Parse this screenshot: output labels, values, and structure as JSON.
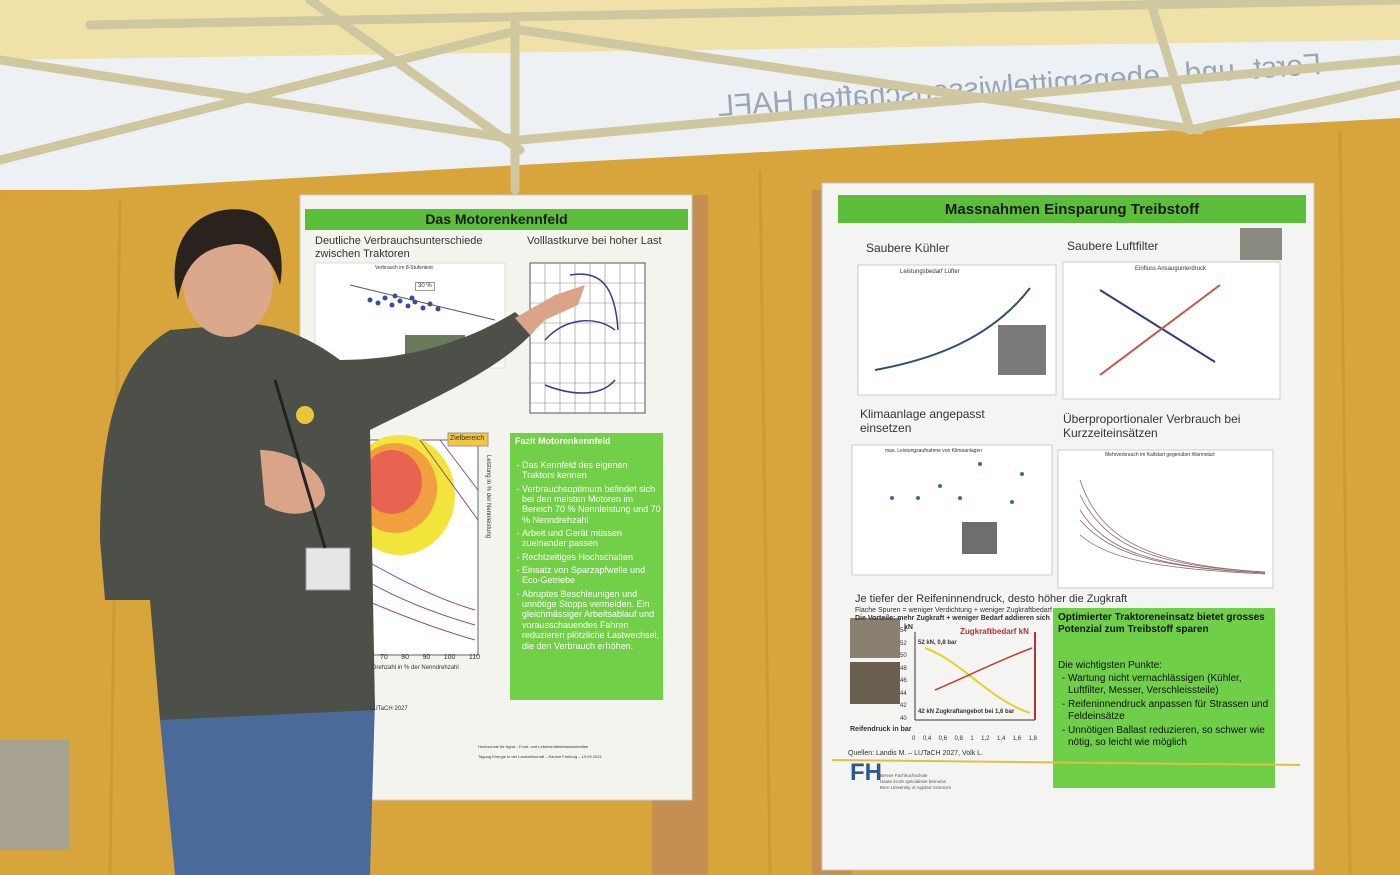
{
  "banner": {
    "text": "Forst- und Lebensmittelwissenschaften HAFL"
  },
  "poster_left": {
    "title": "Das Motorenkennfeld",
    "subtitle_left": "Deutliche Verbrauchsunterschiede zwischen Traktoren",
    "subtitle_right": "Volllastkurve bei hoher Last",
    "scatter_title": "Verbrauch im 8-Stufentest",
    "scatter_label": "30 %",
    "target_label": "Zielbereich",
    "y_axis_label": "Leistung in % der Nennleistung",
    "x_axis_label": "Drehzahl in % der Nenndrehzahl",
    "x_ticks": [
      "70",
      "80",
      "90",
      "100",
      "110"
    ],
    "fazit_title": "Fazit Motorenkennfeld",
    "fazit_points": [
      "Das Kennfeld des eigenen Traktors kennen",
      "Verbrauchsoptimum befindet sich bei den meisten Motoren im Bereich 70 % Nennleistung und 70 % Nenndrehzahl",
      "Arbeit und Gerät müssen zueinander passen",
      "Rechtzeitiges Hochschalten",
      "Einsatz von Sparzapfwelle und Eco-Getriebe",
      "Abruptes Beschleunigen und unnötige Stopps vermeiden. Ein gleichmässiger Arbeitsablauf und vorausschauendes Fahren reduzieren plötzliche Lastwechsel, die den Verbrauch erhöhen."
    ],
    "source": "LUTaCH 2027",
    "footer": "Hochschule für Agrar-, Forst- und Lebensmittelwissenschaften",
    "footer_event": "Tagung Energie in der Landwirtschaft – Kanton Freiburg – 19.09.2024"
  },
  "poster_right": {
    "title": "Massnahmen Einsparung Treibstoff",
    "section_cooler": "Saubere Kühler",
    "chart_cooler": "Leistungsbedarf Lüfter",
    "section_filter": "Saubere Luftfilter",
    "chart_filter": "Einfluss Ansaugunterdruck",
    "section_ac": "Klimaanlage angepasst einsetzen",
    "chart_ac": "max. Leistungsaufnahme von Klimaanlagen",
    "section_short": "Überproportionaler Verbrauch bei Kurzzeiteinsätzen",
    "chart_short": "Mehrverbrauch im Kaltstart gegenüber Warmstart",
    "section_tire": "Je tiefer der Reifeninnendruck, desto höher die Zugkraft",
    "tire_line1": "Flache Spuren = weniger Verdichtung + weniger Zugkraftbedarf",
    "tire_line2": "Die Vorteile: mehr Zugkraft + weniger Bedarf addieren sich",
    "tire_unit": "kN",
    "tire_demand": "Zugkraftbedarf kN",
    "tire_note_high": "52 kN, 0,8 bar",
    "tire_note_low": "42 kN Zugkraftangebot bei 1,6 bar",
    "tire_x_label": "Reifendruck in bar",
    "tire_y_ticks": [
      "54",
      "52",
      "50",
      "48",
      "46",
      "44",
      "42",
      "40"
    ],
    "tire_x_ticks": [
      "0",
      "0,4",
      "0,6",
      "0,8",
      "1",
      "1,2",
      "1,4",
      "1,6",
      "1,8"
    ],
    "box_title": "Optimierter Traktoreneinsatz bietet grosses Potenzial zum Treibstoff sparen",
    "box_subtitle": "Die wichtigsten Punkte:",
    "box_points": [
      "Wartung nicht vernachlässigen (Kühler, Luftfilter, Messer, Verschleissteile)",
      "Reifeninnendruck anpassen für Strassen und Feldeinsätze",
      "Unnötigen Ballast reduzieren, so schwer wie nötig, so leicht wie möglich"
    ],
    "sources": "Quellen: Landis M. – LUTaCH 2027, Volk L.",
    "footer_school": [
      "Berner Fachhochschule",
      "Haute école spécialisée bernoise",
      "Bern University of Applied Sciences"
    ]
  }
}
